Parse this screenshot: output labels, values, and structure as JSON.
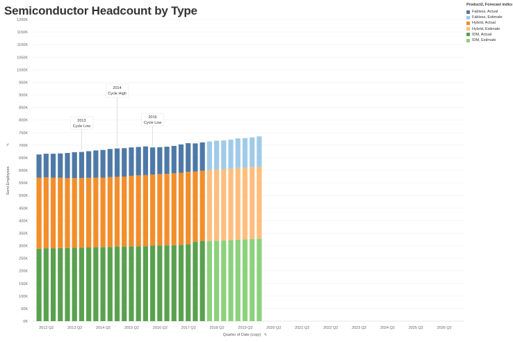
{
  "title": "Semiconductor Headcount by Type",
  "legend": {
    "title": "Product2, Forecast indica..",
    "items": [
      {
        "label": "Fabless, Actual",
        "color": "#4e79a7"
      },
      {
        "label": "Fabless, Estimate",
        "color": "#a0cbe8"
      },
      {
        "label": "Hybrid, Actual",
        "color": "#f28e2b"
      },
      {
        "label": "Hybrid, Estimate",
        "color": "#ffbe7d"
      },
      {
        "label": "IDM, Actual",
        "color": "#59a14f"
      },
      {
        "label": "IDM, Estimate",
        "color": "#8cd17d"
      }
    ]
  },
  "chart_data": {
    "type": "bar",
    "stacked": true,
    "title": "Semiconductor Headcount by Type",
    "xlabel": "Quarter of Date (copy)",
    "ylabel": "Semi Employees",
    "ylim": [
      0,
      1200000
    ],
    "yticks": [
      0,
      50000,
      100000,
      150000,
      200000,
      250000,
      300000,
      350000,
      400000,
      450000,
      500000,
      550000,
      600000,
      650000,
      700000,
      750000,
      800000,
      850000,
      900000,
      950000,
      1000000,
      1050000,
      1100000,
      1150000,
      1200000
    ],
    "ytick_labels": [
      "0K",
      "50K",
      "100K",
      "150K",
      "200K",
      "250K",
      "300K",
      "350K",
      "400K",
      "450K",
      "500K",
      "550K",
      "600K",
      "650K",
      "700K",
      "750K",
      "800K",
      "850K",
      "900K",
      "950K",
      "1000K",
      "1050K",
      "1100K",
      "1150K",
      "1200K"
    ],
    "xtick_labels": [
      "2012 Q2",
      "2013 Q2",
      "2014 Q2",
      "2015 Q2",
      "2016 Q2",
      "2017 Q2",
      "2018 Q2",
      "2019 Q2",
      "2020 Q2",
      "2021 Q2",
      "2022 Q2",
      "2023 Q2",
      "2024 Q2",
      "2025 Q2",
      "2026 Q2"
    ],
    "categories": [
      "2012 Q1",
      "2012 Q2",
      "2012 Q3",
      "2012 Q4",
      "2013 Q1",
      "2013 Q2",
      "2013 Q3",
      "2013 Q4",
      "2014 Q1",
      "2014 Q2",
      "2014 Q3",
      "2014 Q4",
      "2015 Q1",
      "2015 Q2",
      "2015 Q3",
      "2015 Q4",
      "2016 Q1",
      "2016 Q2",
      "2016 Q3",
      "2016 Q4",
      "2017 Q1",
      "2017 Q2",
      "2017 Q3",
      "2017 Q4",
      "2018 Q1",
      "2018 Q2",
      "2018 Q3",
      "2018 Q4",
      "2019 Q1",
      "2019 Q2",
      "2019 Q3",
      "2019 Q4"
    ],
    "actual_count": 24,
    "series": [
      {
        "name": "IDM",
        "actual_color": "#59a14f",
        "estimate_color": "#8cd17d",
        "values": [
          288000,
          290000,
          290000,
          291000,
          291000,
          292000,
          292000,
          293000,
          294000,
          294000,
          295000,
          296000,
          296000,
          297000,
          298000,
          298000,
          300000,
          301000,
          301000,
          302000,
          303000,
          306000,
          316000,
          318000,
          319000,
          320000,
          321000,
          322000,
          324000,
          325000,
          327000,
          328000
        ]
      },
      {
        "name": "Hybrid",
        "actual_color": "#f28e2b",
        "estimate_color": "#ffbe7d",
        "values": [
          283000,
          282000,
          281000,
          280000,
          278000,
          277000,
          277000,
          277000,
          277000,
          277000,
          278000,
          278000,
          279000,
          281000,
          282000,
          283000,
          283000,
          284000,
          285000,
          286000,
          287000,
          288000,
          279000,
          280000,
          282000,
          283000,
          283000,
          284000,
          285000,
          285000,
          286000,
          286000
        ]
      },
      {
        "name": "Fabless",
        "actual_color": "#4e79a7",
        "estimate_color": "#a0cbe8",
        "values": [
          92000,
          94000,
          95000,
          96000,
          100000,
          103000,
          104000,
          106000,
          108000,
          110000,
          112000,
          113000,
          113000,
          113000,
          113000,
          114000,
          108000,
          107000,
          108000,
          109000,
          113000,
          114000,
          112000,
          113000,
          114000,
          115000,
          115000,
          116000,
          118000,
          118000,
          118000,
          121000
        ]
      }
    ],
    "annotations": [
      {
        "year": "2013",
        "text": "Cycle Low",
        "category": "2013 Q3"
      },
      {
        "year": "2014",
        "text": "Cycle High",
        "category": "2014 Q4"
      },
      {
        "year": "2016",
        "text": "Cycle Low",
        "category": "2016 Q1"
      }
    ],
    "grid": true,
    "legend_position": "top-right"
  }
}
